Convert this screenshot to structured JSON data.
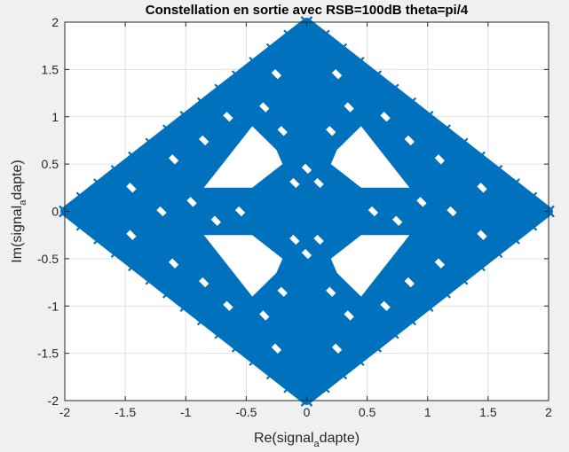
{
  "chart_data": {
    "type": "scatter",
    "title": "Constellation en sortie avec RSB=100dB theta=pi/4",
    "xlabel": {
      "main": "Re(signal",
      "sub": "a",
      "tail": "dapte)"
    },
    "ylabel": {
      "main": "Im(signal",
      "sub": "a",
      "tail": "dapte)"
    },
    "xlim": [
      -2,
      2
    ],
    "ylim": [
      -2,
      2
    ],
    "xticks": [
      -2,
      -1.5,
      -1,
      -0.5,
      0,
      0.5,
      1,
      1.5,
      2
    ],
    "yticks": [
      -2,
      -1.5,
      -1,
      -0.5,
      0,
      0.5,
      1,
      1.5,
      2
    ],
    "xtick_labels": [
      "-2",
      "-1.5",
      "-1",
      "-0.5",
      "0",
      "0.5",
      "1",
      "1.5",
      "2"
    ],
    "ytick_labels": [
      "-2",
      "-1.5",
      "-1",
      "-0.5",
      "0",
      "0.5",
      "1",
      "1.5",
      "2"
    ],
    "grid": true,
    "marker": "x",
    "series": [
      {
        "color": "#0072bd",
        "region": {
          "outer_boundary": [
            [
              0,
              2
            ],
            [
              2,
              0
            ],
            [
              0,
              -2
            ],
            [
              -2,
              0
            ]
          ],
          "holes": [
            [
              [
                -0.85,
                0.25
              ],
              [
                -0.45,
                0.25
              ],
              [
                -0.2,
                0.5
              ],
              [
                -0.25,
                0.65
              ],
              [
                -0.45,
                0.9
              ]
            ],
            [
              [
                0.85,
                0.25
              ],
              [
                0.45,
                0.25
              ],
              [
                0.2,
                0.5
              ],
              [
                0.25,
                0.65
              ],
              [
                0.45,
                0.9
              ]
            ],
            [
              [
                -0.85,
                -0.25
              ],
              [
                -0.45,
                -0.25
              ],
              [
                -0.2,
                -0.5
              ],
              [
                -0.25,
                -0.65
              ],
              [
                -0.45,
                -0.9
              ]
            ],
            [
              [
                0.85,
                -0.25
              ],
              [
                0.45,
                -0.25
              ],
              [
                0.2,
                -0.5
              ],
              [
                0.25,
                -0.65
              ],
              [
                0.45,
                -0.9
              ]
            ]
          ],
          "inner_gaps": [
            [
              -1.1,
              0.55
            ],
            [
              -0.85,
              0.75
            ],
            [
              -0.65,
              1.0
            ],
            [
              -0.35,
              1.1
            ],
            [
              -0.2,
              0.85
            ],
            [
              1.1,
              0.55
            ],
            [
              0.85,
              0.75
            ],
            [
              0.65,
              1.0
            ],
            [
              0.35,
              1.1
            ],
            [
              0.2,
              0.85
            ],
            [
              -1.1,
              -0.55
            ],
            [
              -0.85,
              -0.75
            ],
            [
              -0.65,
              -1.0
            ],
            [
              -0.35,
              -1.1
            ],
            [
              -0.2,
              -0.85
            ],
            [
              1.1,
              -0.55
            ],
            [
              0.85,
              -0.75
            ],
            [
              0.65,
              -1.0
            ],
            [
              0.35,
              -1.1
            ],
            [
              0.2,
              -0.85
            ],
            [
              -1.2,
              0.0
            ],
            [
              -0.95,
              0.1
            ],
            [
              -0.75,
              -0.1
            ],
            [
              -0.55,
              0.0
            ],
            [
              1.2,
              0.0
            ],
            [
              0.95,
              0.1
            ],
            [
              0.75,
              -0.1
            ],
            [
              0.55,
              0.0
            ],
            [
              0.0,
              0.45
            ],
            [
              -0.1,
              0.3
            ],
            [
              0.1,
              0.3
            ],
            [
              0.0,
              -0.45
            ],
            [
              -0.1,
              -0.3
            ],
            [
              0.1,
              -0.3
            ],
            [
              -1.45,
              0.25
            ],
            [
              1.45,
              0.25
            ],
            [
              -1.45,
              -0.25
            ],
            [
              1.45,
              -0.25
            ],
            [
              -0.25,
              1.45
            ],
            [
              0.25,
              1.45
            ],
            [
              -0.25,
              -1.45
            ],
            [
              0.25,
              -1.45
            ]
          ]
        }
      }
    ]
  }
}
